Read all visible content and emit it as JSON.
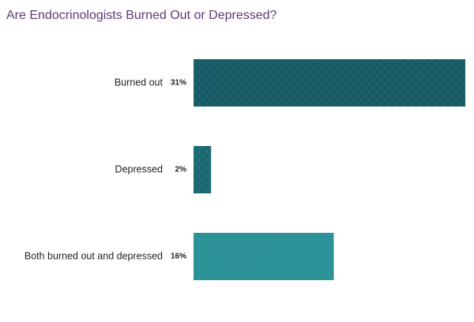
{
  "chart_data": {
    "type": "bar",
    "orientation": "horizontal",
    "title": "Are Endocrinologists Burned Out or Depressed?",
    "categories": [
      "Burned out",
      "Depressed",
      "Both burned out and depressed"
    ],
    "values": [
      31,
      2,
      16
    ],
    "value_labels": [
      "31%",
      "2%",
      "16%"
    ],
    "colors": [
      "#175c66",
      "#1b6a72",
      "#2a9197"
    ]
  }
}
